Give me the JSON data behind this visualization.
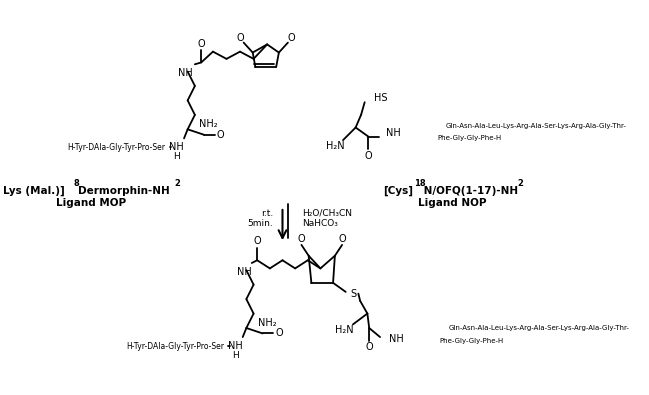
{
  "bg": "#ffffff",
  "lc": "#000000",
  "peptide_left": "H-Tyr-DAla-Gly-Tyr-Pro-Ser",
  "peptide_right1": "Gln-Asn-Ala-Leu-Lys-Arg-Ala-Ser-Lys-Arg-Ala-Gly-Thr-",
  "peptide_right2": "Phe-Gly-Gly-Phe-H",
  "label_mop1a": "Lys (Mal.)]",
  "label_mop1b_super": "8",
  "label_mop1c": "Dermorphin-NH",
  "label_mop1d_sub": "2",
  "label_mop2": "Ligand MOP",
  "label_nop1a": "[Cys]",
  "label_nop1b_super": "18",
  "label_nop1c": " N/OFQ(1-17)-NH",
  "label_nop1d_sub": "2",
  "label_nop2": "Ligand NOP",
  "cond1": "r.t.",
  "cond2": "5min.",
  "cond3": "H₂O/CH₃CN",
  "cond4": "NaHCO₃",
  "NH2": "NH₂",
  "H2N": "H₂N",
  "HS": "HS"
}
